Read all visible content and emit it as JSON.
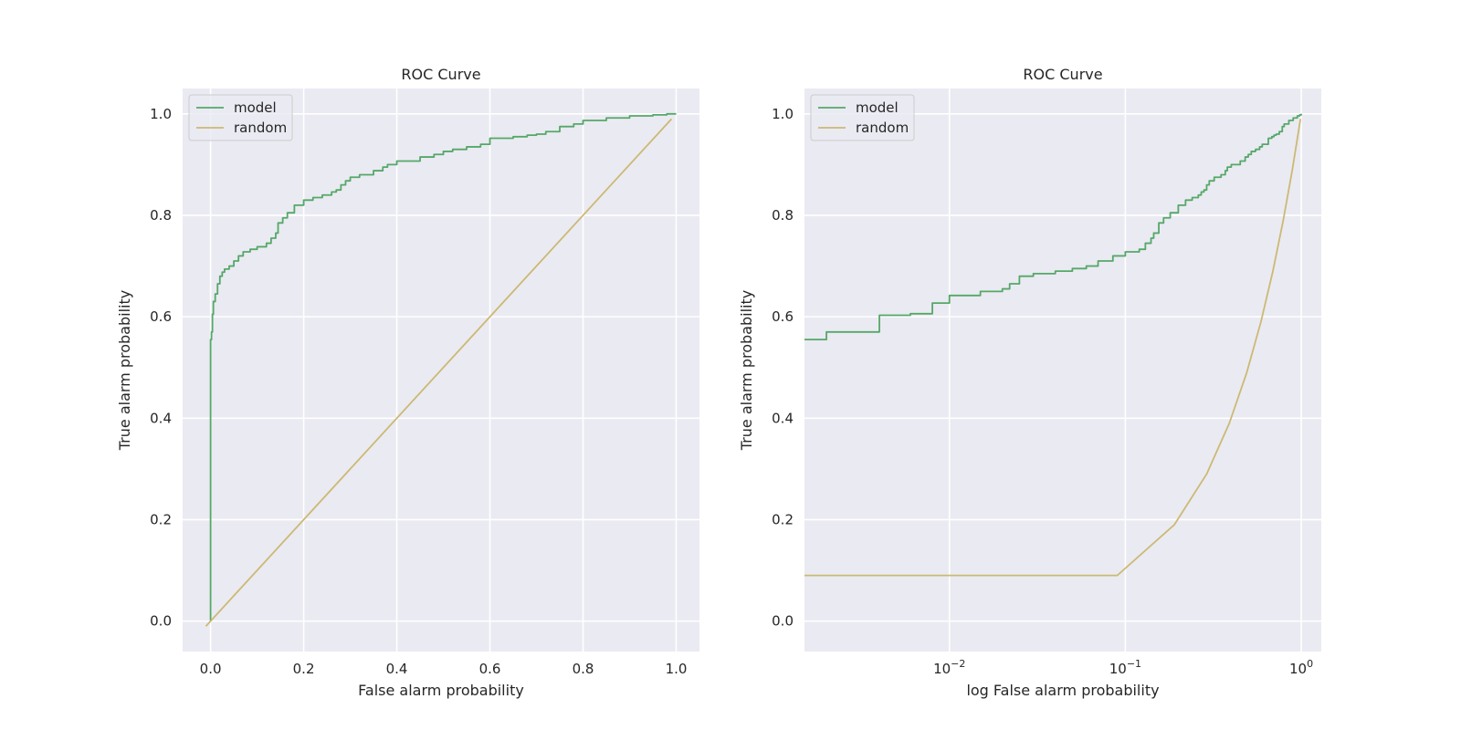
{
  "chart_data": [
    {
      "type": "line",
      "title": "ROC Curve",
      "xlabel": "False alarm probability",
      "ylabel": "True alarm probability",
      "xscale": "linear",
      "xlim": [
        -0.06,
        1.05
      ],
      "ylim": [
        -0.06,
        1.05
      ],
      "xticks": [
        0.0,
        0.2,
        0.4,
        0.6,
        0.8,
        1.0
      ],
      "xtick_labels": [
        "0.0",
        "0.2",
        "0.4",
        "0.6",
        "0.8",
        "1.0"
      ],
      "yticks": [
        0.0,
        0.2,
        0.4,
        0.6,
        0.8,
        1.0
      ],
      "ytick_labels": [
        "0.0",
        "0.2",
        "0.4",
        "0.6",
        "0.8",
        "1.0"
      ],
      "grid": true,
      "legend": "top-left",
      "series": [
        {
          "name": "model",
          "color": "#55a868",
          "step": true,
          "x": [
            0.0,
            0.0,
            0.002,
            0.004,
            0.006,
            0.01,
            0.015,
            0.02,
            0.025,
            0.03,
            0.04,
            0.05,
            0.06,
            0.07,
            0.085,
            0.1,
            0.12,
            0.13,
            0.14,
            0.145,
            0.155,
            0.165,
            0.18,
            0.2,
            0.22,
            0.24,
            0.26,
            0.27,
            0.28,
            0.29,
            0.3,
            0.32,
            0.35,
            0.37,
            0.38,
            0.4,
            0.45,
            0.48,
            0.5,
            0.52,
            0.55,
            0.58,
            0.6,
            0.65,
            0.68,
            0.7,
            0.72,
            0.75,
            0.78,
            0.8,
            0.85,
            0.9,
            0.95,
            0.98,
            1.0
          ],
          "y": [
            0.0,
            0.555,
            0.57,
            0.605,
            0.63,
            0.645,
            0.665,
            0.68,
            0.688,
            0.694,
            0.7,
            0.71,
            0.72,
            0.728,
            0.733,
            0.738,
            0.745,
            0.755,
            0.765,
            0.785,
            0.795,
            0.805,
            0.82,
            0.83,
            0.835,
            0.84,
            0.846,
            0.85,
            0.86,
            0.868,
            0.875,
            0.88,
            0.888,
            0.895,
            0.9,
            0.907,
            0.915,
            0.92,
            0.926,
            0.93,
            0.935,
            0.94,
            0.952,
            0.955,
            0.958,
            0.96,
            0.965,
            0.975,
            0.98,
            0.987,
            0.992,
            0.996,
            0.998,
            1.0,
            1.0
          ]
        },
        {
          "name": "random",
          "color": "#ccb974",
          "step": false,
          "x": [
            -0.01,
            0.99
          ],
          "y": [
            -0.01,
            0.99
          ]
        }
      ]
    },
    {
      "type": "line",
      "title": "ROC Curve",
      "xlabel": "log False alarm probability",
      "ylabel": "True alarm probability",
      "xscale": "log",
      "xlim": [
        0.0015,
        1.3
      ],
      "ylim": [
        -0.06,
        1.05
      ],
      "xticks": [
        0.01,
        0.1,
        1.0
      ],
      "xtick_labels": [
        {
          "base": "10",
          "exp": "−2"
        },
        {
          "base": "10",
          "exp": "−1"
        },
        {
          "base": "10",
          "exp": "0"
        }
      ],
      "yticks": [
        0.0,
        0.2,
        0.4,
        0.6,
        0.8,
        1.0
      ],
      "ytick_labels": [
        "0.0",
        "0.2",
        "0.4",
        "0.6",
        "0.8",
        "1.0"
      ],
      "grid": true,
      "legend": "top-left",
      "series": [
        {
          "name": "model",
          "color": "#55a868",
          "step": true,
          "x": [
            0.0015,
            0.002,
            0.004,
            0.006,
            0.008,
            0.01,
            0.015,
            0.02,
            0.022,
            0.025,
            0.03,
            0.04,
            0.05,
            0.06,
            0.07,
            0.085,
            0.1,
            0.12,
            0.13,
            0.14,
            0.145,
            0.155,
            0.165,
            0.18,
            0.2,
            0.22,
            0.24,
            0.26,
            0.27,
            0.28,
            0.29,
            0.3,
            0.32,
            0.35,
            0.37,
            0.38,
            0.4,
            0.45,
            0.48,
            0.5,
            0.52,
            0.55,
            0.58,
            0.6,
            0.65,
            0.68,
            0.7,
            0.72,
            0.75,
            0.78,
            0.8,
            0.85,
            0.9,
            0.95,
            0.98,
            1.0
          ],
          "y": [
            0.555,
            0.57,
            0.603,
            0.606,
            0.627,
            0.642,
            0.65,
            0.655,
            0.665,
            0.68,
            0.685,
            0.69,
            0.695,
            0.7,
            0.71,
            0.72,
            0.728,
            0.733,
            0.745,
            0.755,
            0.765,
            0.785,
            0.795,
            0.805,
            0.82,
            0.83,
            0.835,
            0.84,
            0.846,
            0.85,
            0.86,
            0.868,
            0.875,
            0.88,
            0.888,
            0.895,
            0.9,
            0.907,
            0.915,
            0.92,
            0.926,
            0.93,
            0.935,
            0.94,
            0.952,
            0.955,
            0.958,
            0.96,
            0.965,
            0.975,
            0.98,
            0.987,
            0.992,
            0.996,
            0.998,
            1.0
          ]
        },
        {
          "name": "random",
          "color": "#ccb974",
          "step": false,
          "x": [
            0.0015,
            0.09,
            0.19,
            0.29,
            0.39,
            0.49,
            0.59,
            0.69,
            0.79,
            0.89,
            0.99
          ],
          "y": [
            0.09,
            0.09,
            0.19,
            0.29,
            0.39,
            0.49,
            0.59,
            0.69,
            0.79,
            0.89,
            0.99
          ]
        }
      ]
    }
  ]
}
